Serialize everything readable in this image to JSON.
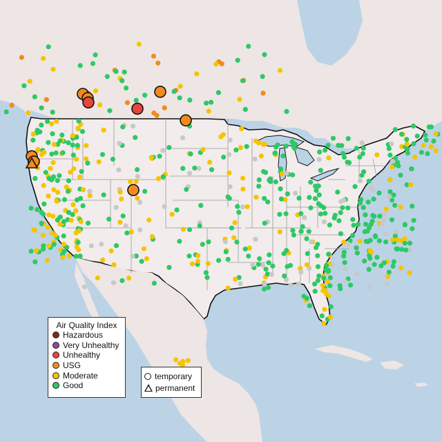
{
  "map": {
    "colors": {
      "water": "#bcd3e6",
      "land": "#f2ecec",
      "land_outside": "#ece4e2",
      "border": "#111111",
      "state_line": "#9a9a9a"
    }
  },
  "legend": {
    "title": "Air Quality Index",
    "items": [
      {
        "label": "Hazardous",
        "color": "#7e2a1f"
      },
      {
        "label": "Very Unhealthy",
        "color": "#8f4a9e"
      },
      {
        "label": "Unhealthy",
        "color": "#e8463a"
      },
      {
        "label": "USG",
        "color": "#f28a1e"
      },
      {
        "label": "Moderate",
        "color": "#f5c400"
      },
      {
        "label": "Good",
        "color": "#2ec866"
      }
    ]
  },
  "site_legend": {
    "items": [
      {
        "label": "temporary",
        "shape": "circle-icon"
      },
      {
        "label": "permanent",
        "shape": "triangle-icon"
      }
    ]
  },
  "markers": {
    "large": [
      {
        "aqi": "USG",
        "type": "temporary",
        "lon": -116.2,
        "lat": 48.3
      },
      {
        "aqi": "USG",
        "type": "temporary",
        "lon": -115.5,
        "lat": 47.9
      },
      {
        "aqi": "Unhealthy",
        "type": "temporary",
        "lon": -115.4,
        "lat": 47.5
      },
      {
        "aqi": "USG",
        "type": "temporary",
        "lon": -105.0,
        "lat": 48.5
      },
      {
        "aqi": "Unhealthy",
        "type": "temporary",
        "lon": -108.3,
        "lat": 46.9
      },
      {
        "aqi": "USG",
        "type": "temporary",
        "lon": -101.3,
        "lat": 45.8
      },
      {
        "aqi": "USG",
        "type": "temporary",
        "lon": -123.6,
        "lat": 42.4
      },
      {
        "aqi": "USG",
        "type": "temporary",
        "lon": -123.3,
        "lat": 41.9
      },
      {
        "aqi": "USG",
        "type": "temporary",
        "lon": -108.9,
        "lat": 39.2
      },
      {
        "aqi": "USG",
        "type": "permanent",
        "lon": -123.6,
        "lat": 41.7
      }
    ]
  }
}
